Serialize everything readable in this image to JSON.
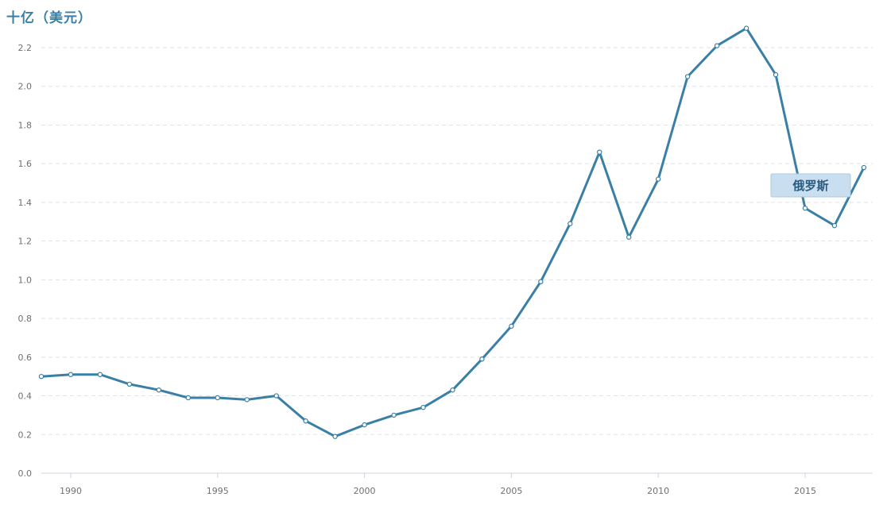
{
  "chart_data": {
    "type": "line",
    "unit_label": "十亿（美元）",
    "x": [
      1989,
      1990,
      1991,
      1992,
      1993,
      1994,
      1995,
      1996,
      1997,
      1998,
      1999,
      2000,
      2001,
      2002,
      2003,
      2004,
      2005,
      2006,
      2007,
      2008,
      2009,
      2010,
      2011,
      2012,
      2013,
      2014,
      2015,
      2016,
      2017
    ],
    "series": [
      {
        "name": "俄罗斯",
        "values": [
          0.5,
          0.51,
          0.51,
          0.46,
          0.43,
          0.39,
          0.39,
          0.38,
          0.4,
          0.27,
          0.19,
          0.25,
          0.3,
          0.34,
          0.43,
          0.59,
          0.76,
          0.99,
          1.29,
          1.66,
          1.22,
          1.52,
          2.05,
          2.21,
          2.3,
          2.06,
          1.37,
          1.28,
          1.58
        ]
      }
    ],
    "x_ticks": [
      "1990",
      "1995",
      "2000",
      "2005",
      "2010",
      "2015"
    ],
    "y_ticks": [
      "0.0",
      "0.2",
      "0.4",
      "0.6",
      "0.8",
      "1.0",
      "1.2",
      "1.4",
      "1.6",
      "1.8",
      "2.0",
      "2.2"
    ],
    "xlim": [
      1989,
      2017.3
    ],
    "ylim": [
      0,
      2.2
    ],
    "grid": "horizontal-dashed",
    "legend": "label near line end",
    "colors": {
      "line": "#3a7fa6",
      "grid": "#dde3e8",
      "axis_text": "#707070",
      "label_bg": "#c9dff0",
      "label_border": "#a8c8e0",
      "label_text": "#2a5b80"
    }
  }
}
